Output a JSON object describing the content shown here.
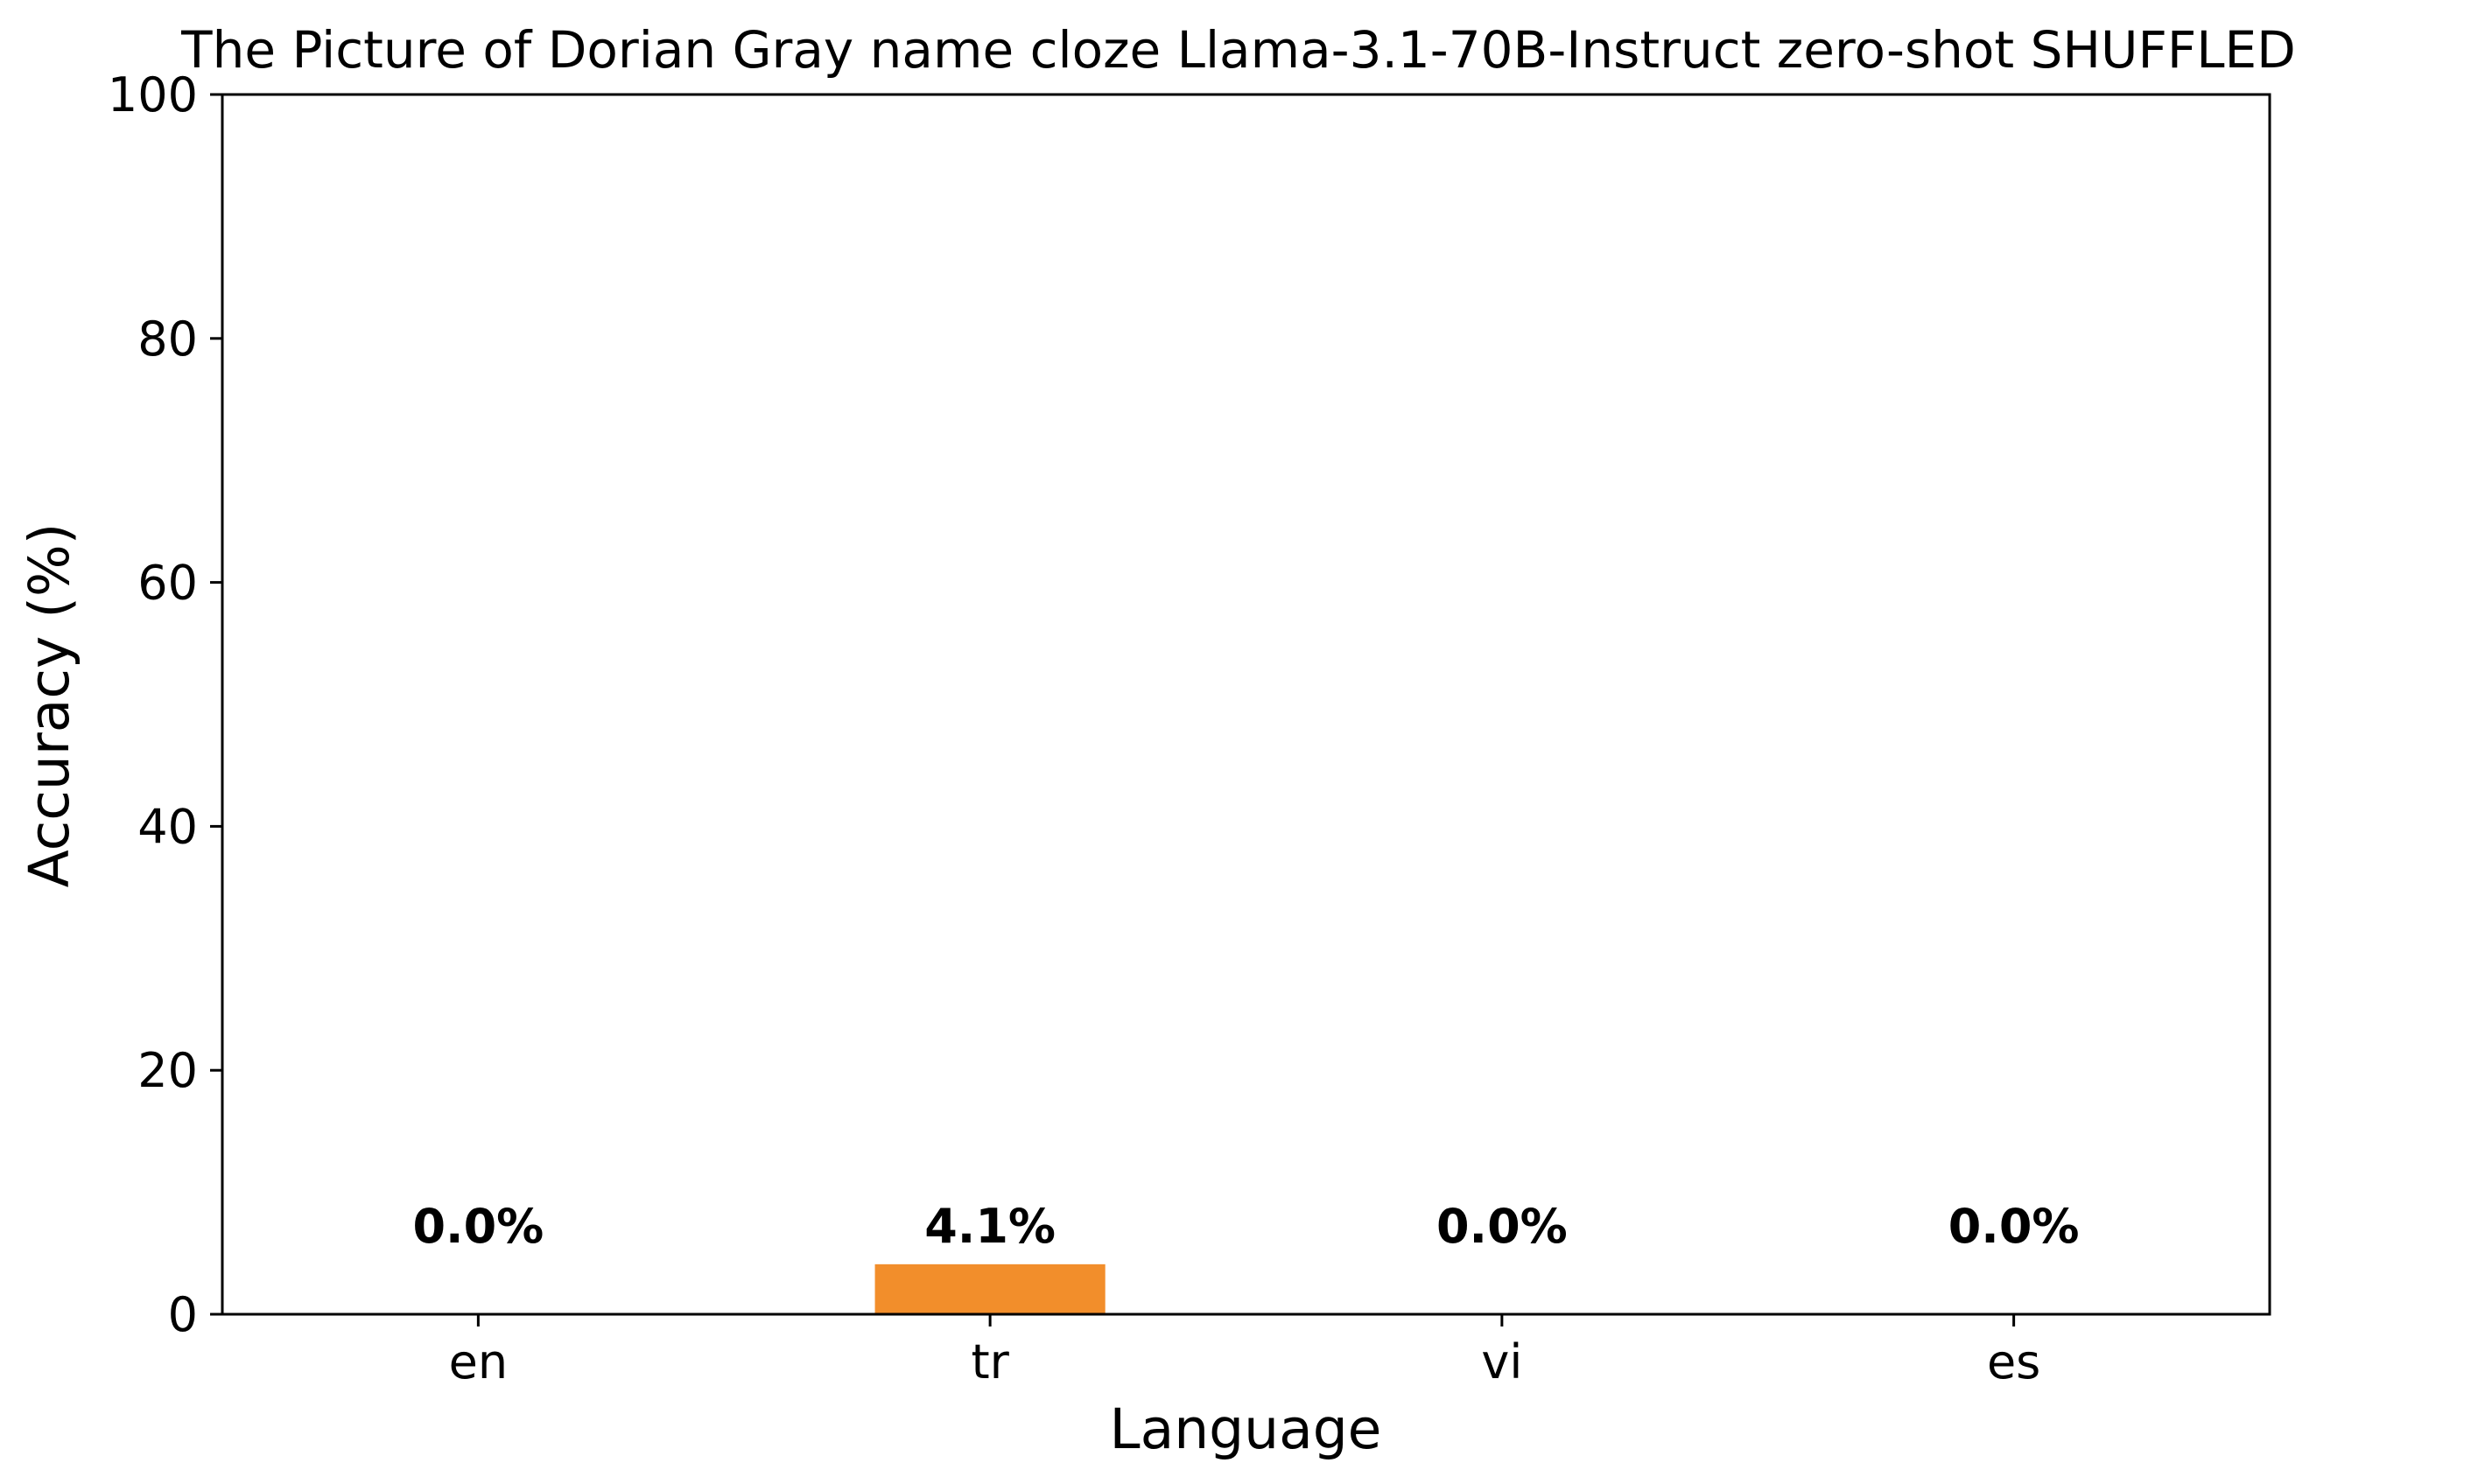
{
  "chart_data": {
    "type": "bar",
    "title": "The Picture of Dorian Gray name cloze Llama-3.1-70B-Instruct zero-shot SHUFFLED",
    "xlabel": "Language",
    "ylabel": "Accuracy (%)",
    "categories": [
      "en",
      "tr",
      "vi",
      "es"
    ],
    "values": [
      0.0,
      4.1,
      0.0,
      0.0
    ],
    "value_labels": [
      "0.0%",
      "4.1%",
      "0.0%",
      "0.0%"
    ],
    "ylim": [
      0,
      100
    ],
    "yticks": [
      0,
      20,
      40,
      60,
      80,
      100
    ],
    "ytick_labels": [
      "0",
      "20",
      "40",
      "60",
      "80",
      "100"
    ],
    "grid": false,
    "bar_color": "#F28E2B"
  }
}
